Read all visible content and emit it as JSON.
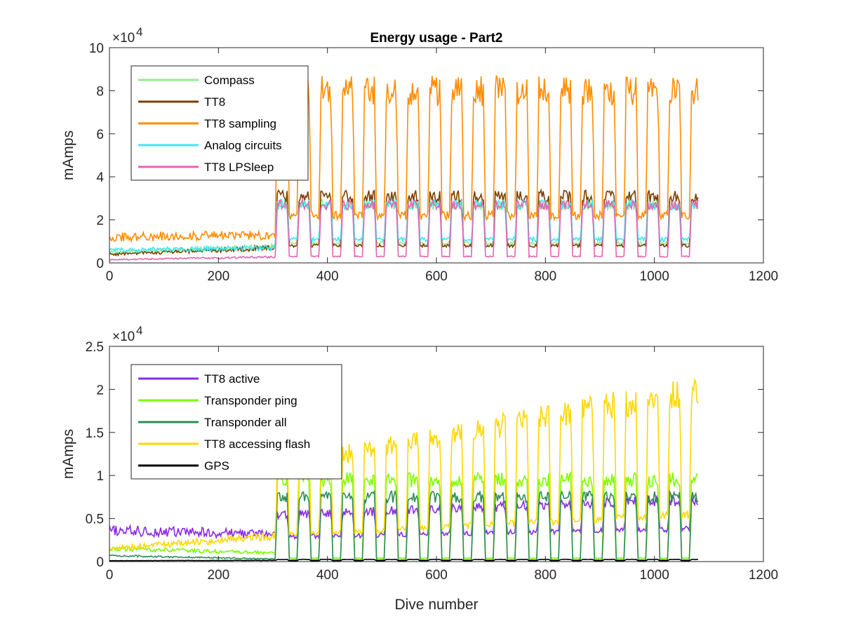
{
  "figure": {
    "title": "Energy usage - Part2"
  },
  "chart_data": [
    {
      "type": "line",
      "title": "Energy usage - Part2",
      "xlabel": "",
      "ylabel": "mAmps",
      "xlim": [
        0,
        1200
      ],
      "ylim": [
        0,
        100000
      ],
      "x_ticks": [
        "0",
        "200",
        "400",
        "600",
        "800",
        "1000",
        "1200"
      ],
      "y_ticks": [
        "0",
        "2",
        "4",
        "6",
        "8",
        "10"
      ],
      "y_multiplier": "×10",
      "y_multiplier_exp": "4",
      "legend_position": "top-left",
      "grid": false,
      "series": [
        {
          "name": "Compass",
          "color": "#90ee90",
          "base_start": 5000,
          "base_end": 7500,
          "peak": 27000,
          "trough": 9000
        },
        {
          "name": "TT8",
          "color": "#7b3f00",
          "base_start": 4000,
          "base_end": 7000,
          "peak": 31000,
          "trough": 8000
        },
        {
          "name": "TT8 sampling",
          "color": "#ff8c00",
          "base_start": 12000,
          "base_end": 13000,
          "peak": 80000,
          "trough": 22000
        },
        {
          "name": "Analog circuits",
          "color": "#3ee8f0",
          "base_start": 6000,
          "base_end": 7000,
          "peak": 27000,
          "trough": 11000
        },
        {
          "name": "TT8 LPSleep",
          "color": "#e066b4",
          "base_start": 1500,
          "base_end": 2800,
          "peak": 27000,
          "trough": 3000
        }
      ]
    },
    {
      "type": "line",
      "title": "",
      "xlabel": "Dive number",
      "ylabel": "mAmps",
      "xlim": [
        0,
        1200
      ],
      "ylim": [
        0,
        25000
      ],
      "x_ticks": [
        "0",
        "200",
        "400",
        "600",
        "800",
        "1000",
        "1200"
      ],
      "y_ticks": [
        "0",
        "0.5",
        "1",
        "1.5",
        "2",
        "2.5"
      ],
      "y_multiplier": "×10",
      "y_multiplier_exp": "4",
      "legend_position": "top-left",
      "grid": false,
      "series": [
        {
          "name": "TT8 active",
          "color": "#8a2be2",
          "base_start": 3600,
          "base_end": 3200,
          "peak": 7200,
          "trough": 3800
        },
        {
          "name": "Transponder ping",
          "color": "#7cfc00",
          "base_start": 1500,
          "base_end": 1000,
          "peak": 9500,
          "trough": 400
        },
        {
          "name": "Transponder all",
          "color": "#2e8b57",
          "base_start": 700,
          "base_end": 300,
          "peak": 7500,
          "trough": 200
        },
        {
          "name": "TT8 accessing flash",
          "color": "#ffd700",
          "base_start": 1500,
          "base_end": 3000,
          "peak": 20000,
          "trough": 5500
        },
        {
          "name": "GPS",
          "color": "#000000",
          "base_start": 100,
          "base_end": 150,
          "peak": 250,
          "trough": 100
        }
      ]
    }
  ]
}
